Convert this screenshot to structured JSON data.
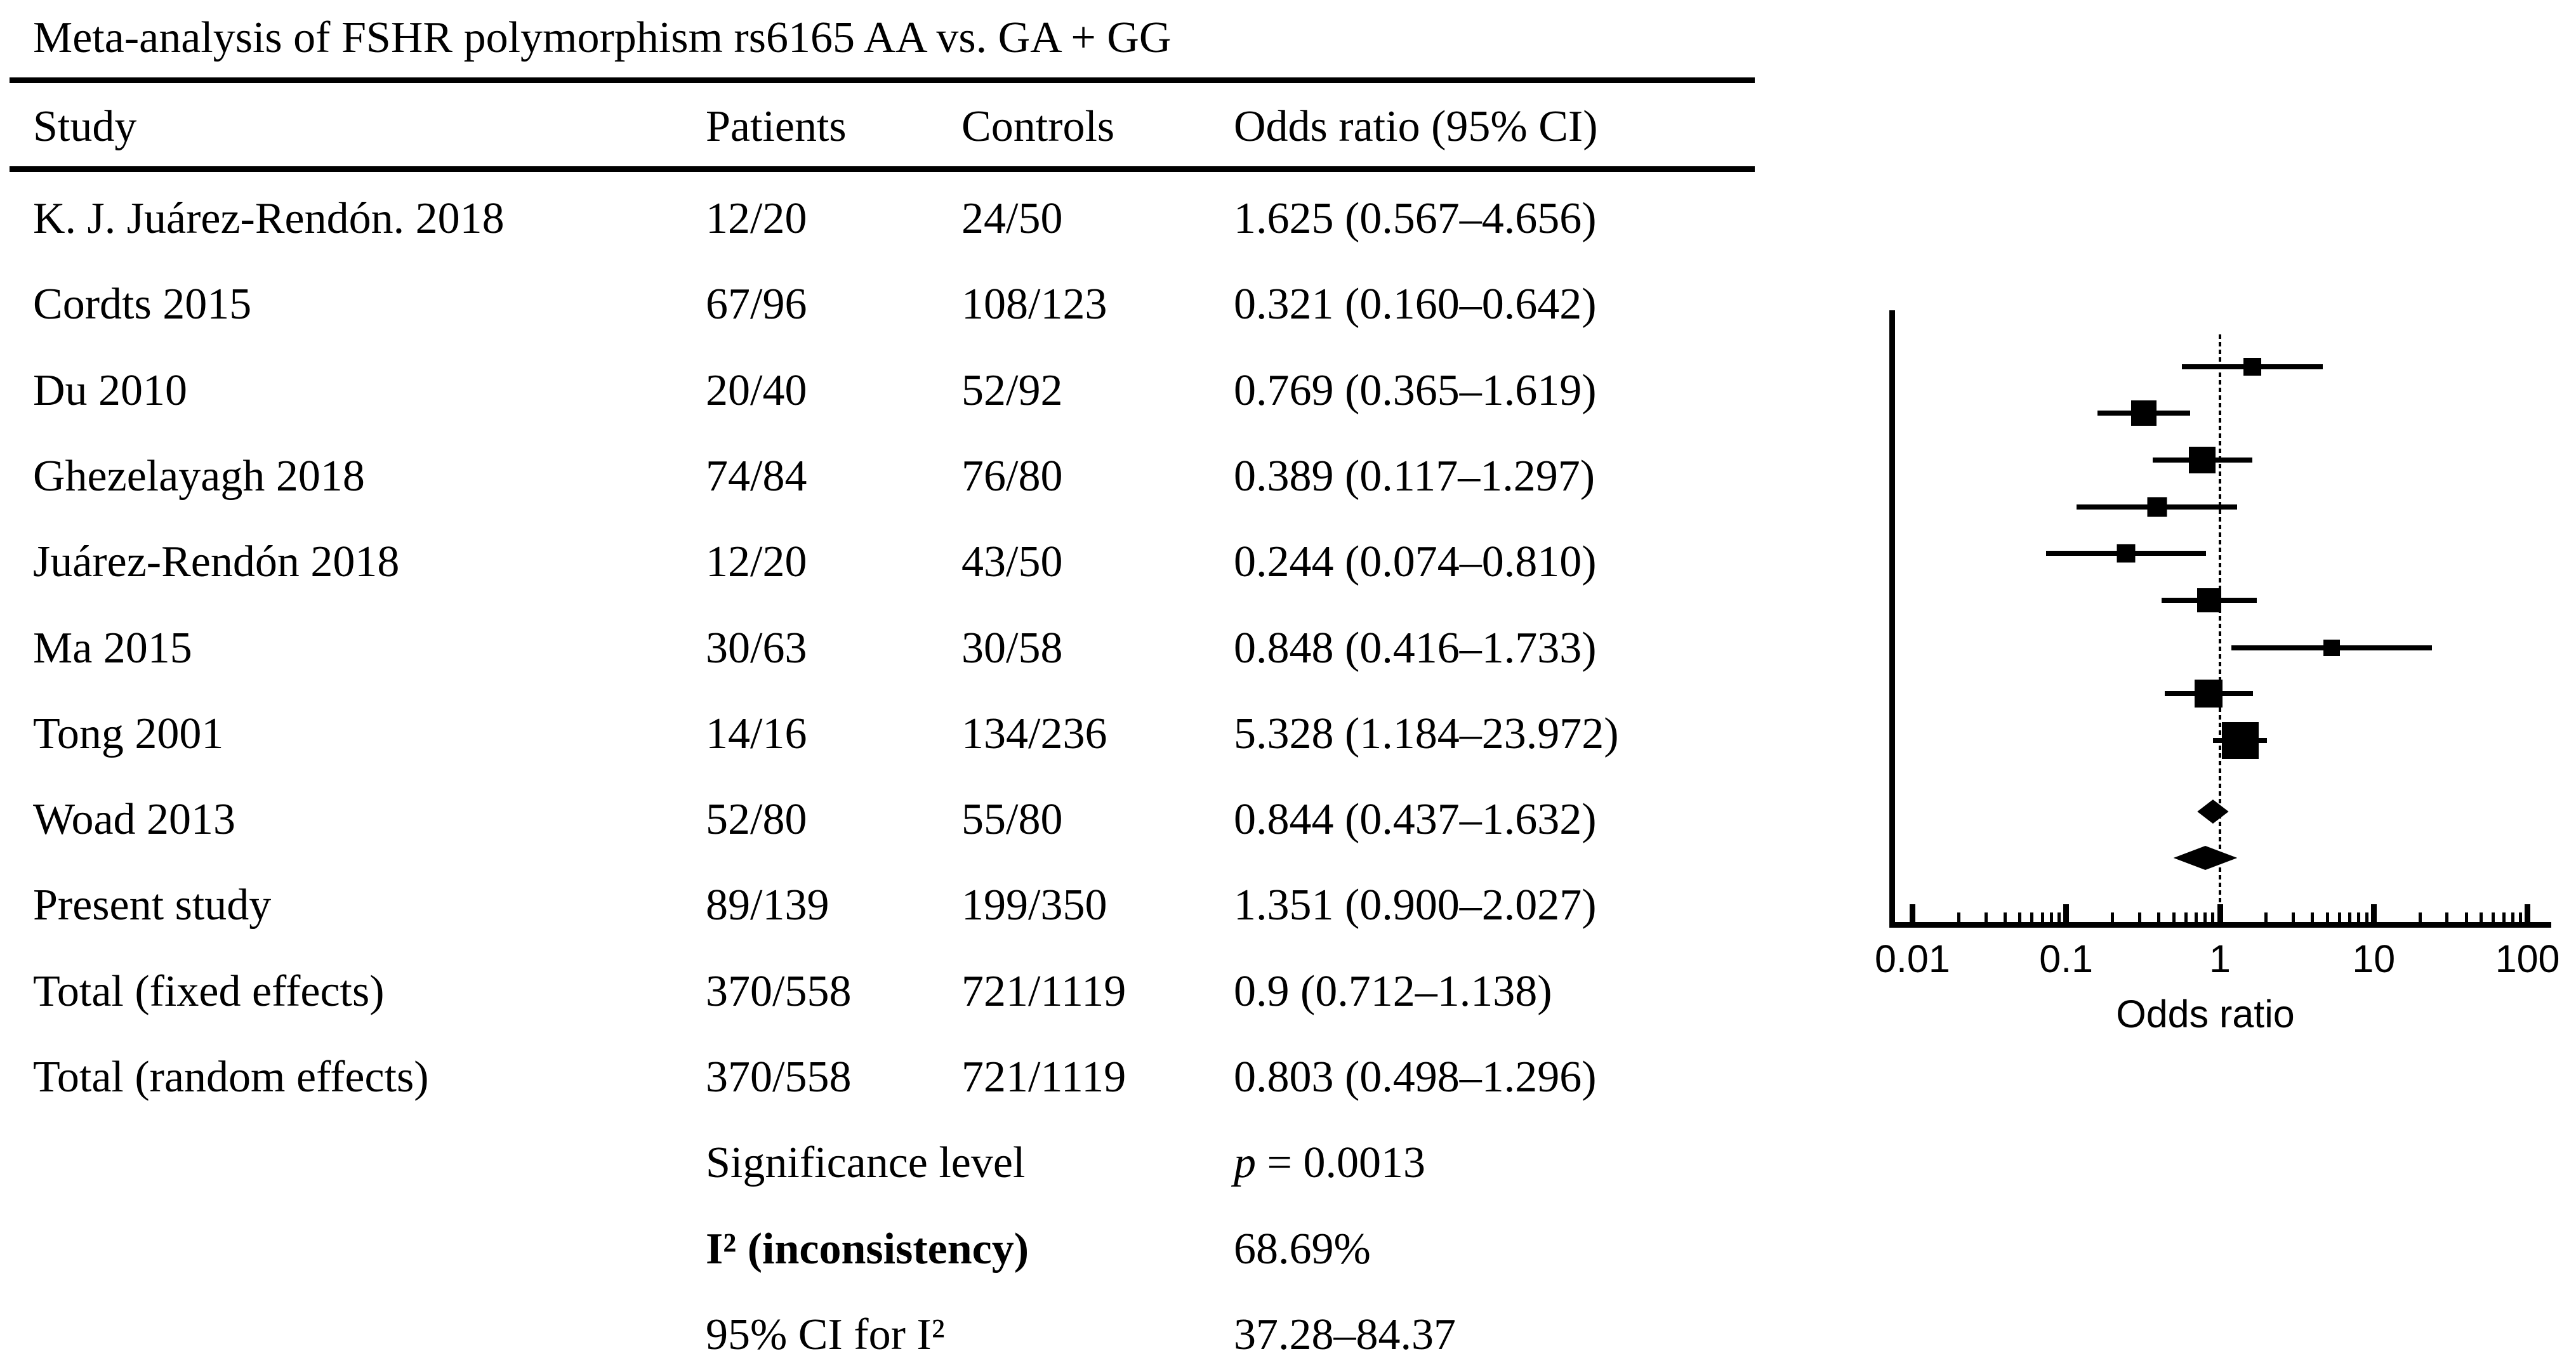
{
  "title": "Meta-analysis of FSHR polymorphism rs6165 AA vs. GA + GG",
  "table": {
    "headers": [
      "Study",
      "Patients",
      "Controls",
      "Odds ratio (95% CI)"
    ],
    "rows": [
      {
        "study": "K. J. Juárez-Rendón. 2018",
        "patients": "12/20",
        "controls": "24/50",
        "or_ci": "1.625 (0.567–4.656)"
      },
      {
        "study": "Cordts 2015",
        "patients": "67/96",
        "controls": "108/123",
        "or_ci": "0.321 (0.160–0.642)"
      },
      {
        "study": "Du 2010",
        "patients": "20/40",
        "controls": "52/92",
        "or_ci": "0.769 (0.365–1.619)"
      },
      {
        "study": "Ghezelayagh 2018",
        "patients": "74/84",
        "controls": "76/80",
        "or_ci": "0.389 (0.117–1.297)"
      },
      {
        "study": "Juárez-Rendón 2018",
        "patients": "12/20",
        "controls": "43/50",
        "or_ci": "0.244 (0.074–0.810)"
      },
      {
        "study": "Ma 2015",
        "patients": "30/63",
        "controls": "30/58",
        "or_ci": "0.848 (0.416–1.733)"
      },
      {
        "study": "Tong 2001",
        "patients": "14/16",
        "controls": "134/236",
        "or_ci": "5.328 (1.184–23.972)"
      },
      {
        "study": "Woad 2013",
        "patients": "52/80",
        "controls": "55/80",
        "or_ci": "0.844 (0.437–1.632)"
      },
      {
        "study": "Present study",
        "patients": "89/139",
        "controls": "199/350",
        "or_ci": "1.351 (0.900–2.027)"
      },
      {
        "study": "Total (fixed effects)",
        "patients": "370/558",
        "controls": "721/1119",
        "or_ci": "0.9 (0.712–1.138)"
      },
      {
        "study": "Total (random effects)",
        "patients": "370/558",
        "controls": "721/1119",
        "or_ci": "0.803 (0.498–1.296)"
      }
    ],
    "stats": [
      {
        "label": "Significance level",
        "value_italic": "p",
        "value": " = 0.0013"
      },
      {
        "label": "I² (inconsistency)",
        "value": "68.69%",
        "bold": true
      },
      {
        "label": "95% CI for I²",
        "value": "37.28–84.37"
      }
    ]
  },
  "chart_data": {
    "type": "forest",
    "xlabel": "Odds ratio",
    "x_scale": "log",
    "x_range": [
      0.01,
      100
    ],
    "x_ticks": [
      "0.01",
      "0.1",
      "1",
      "10",
      "100"
    ],
    "x_tick_values": [
      0.01,
      0.1,
      1,
      10,
      100
    ],
    "ref_line": 1,
    "grid": false,
    "marker_color": "#000000",
    "studies": [
      {
        "name": "K. J. Juárez-Rendón. 2018",
        "or": 1.625,
        "ci_low": 0.567,
        "ci_high": 4.656,
        "marker_px": 28
      },
      {
        "name": "Cordts 2015",
        "or": 0.321,
        "ci_low": 0.16,
        "ci_high": 0.642,
        "marker_px": 40
      },
      {
        "name": "Du 2010",
        "or": 0.769,
        "ci_low": 0.365,
        "ci_high": 1.619,
        "marker_px": 42
      },
      {
        "name": "Ghezelayagh 2018",
        "or": 0.389,
        "ci_low": 0.117,
        "ci_high": 1.297,
        "marker_px": 31
      },
      {
        "name": "Juárez-Rendón 2018",
        "or": 0.244,
        "ci_low": 0.074,
        "ci_high": 0.81,
        "marker_px": 29
      },
      {
        "name": "Ma 2015",
        "or": 0.848,
        "ci_low": 0.416,
        "ci_high": 1.733,
        "marker_px": 38
      },
      {
        "name": "Tong 2001",
        "or": 5.328,
        "ci_low": 1.184,
        "ci_high": 23.972,
        "marker_px": 26
      },
      {
        "name": "Woad 2013",
        "or": 0.844,
        "ci_low": 0.437,
        "ci_high": 1.632,
        "marker_px": 44
      },
      {
        "name": "Present study",
        "or": 1.351,
        "ci_low": 0.9,
        "ci_high": 2.027,
        "marker_px": 58
      }
    ],
    "summaries": [
      {
        "name": "Total (fixed effects)",
        "or": 0.9,
        "ci_low": 0.712,
        "ci_high": 1.138,
        "shape": "diamond"
      },
      {
        "name": "Total (random effects)",
        "or": 0.803,
        "ci_low": 0.498,
        "ci_high": 1.296,
        "shape": "diamond"
      }
    ]
  }
}
